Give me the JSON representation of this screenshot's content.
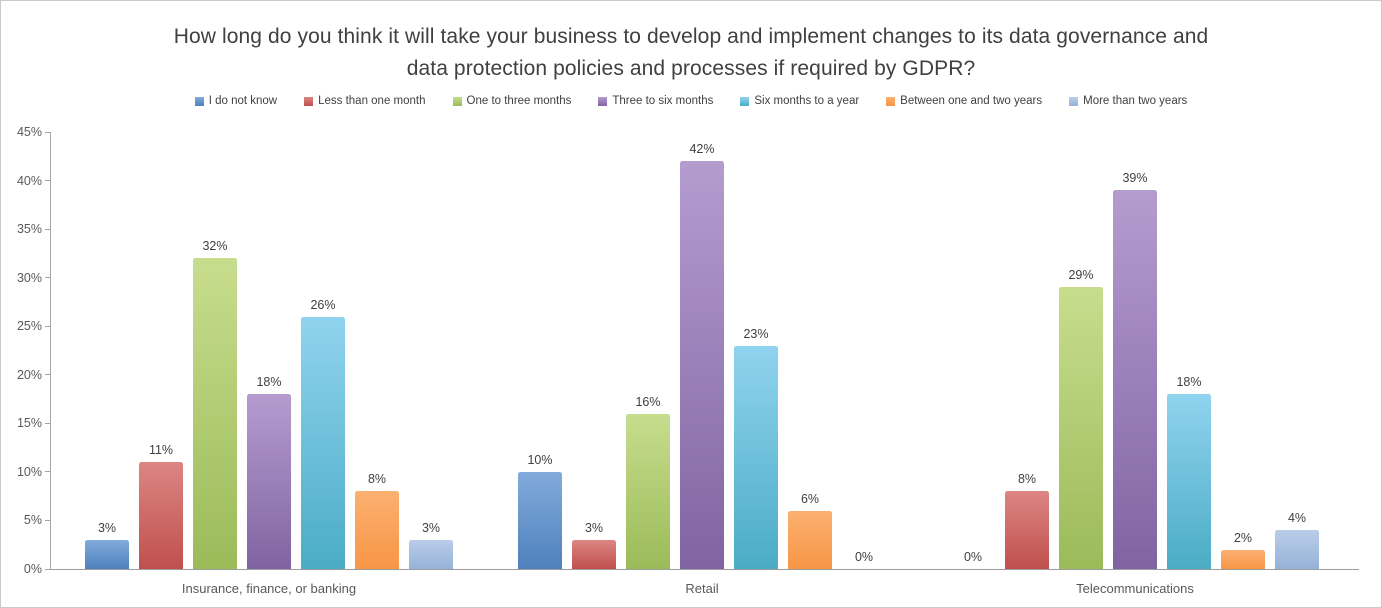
{
  "title": {
    "lines": [
      "How long do you think it will take your business to develop and implement changes to its data governance and",
      "data protection policies and processes if required by GDPR?"
    ]
  },
  "chart_data": {
    "type": "bar",
    "title": "How long do you think it will take your business to develop and implement changes to its data governance and data protection policies and processes if required by GDPR?",
    "categories": [
      "Insurance, finance, or banking",
      "Retail",
      "Telecommunications"
    ],
    "series": [
      {
        "name": "I do not know",
        "color": "#4F81BD",
        "color_light": "#82ABDB",
        "values": [
          3,
          10,
          0
        ],
        "labels": [
          "3%",
          "10%",
          "0%"
        ]
      },
      {
        "name": "Less than one month",
        "color": "#C0504D",
        "color_light": "#DC8683",
        "values": [
          11,
          3,
          8
        ],
        "labels": [
          "11%",
          "3%",
          "8%"
        ]
      },
      {
        "name": "One to three months",
        "color": "#9BBB59",
        "color_light": "#C7DD8E",
        "values": [
          32,
          16,
          29
        ],
        "labels": [
          "32%",
          "16%",
          "29%"
        ]
      },
      {
        "name": "Three to six months",
        "color": "#8064A2",
        "color_light": "#B59CCF",
        "values": [
          18,
          42,
          39
        ],
        "labels": [
          "18%",
          "42%",
          "39%"
        ]
      },
      {
        "name": "Six months to a year",
        "color": "#4BACC6",
        "color_light": "#90D3EE",
        "values": [
          26,
          23,
          18
        ],
        "labels": [
          "26%",
          "23%",
          "18%"
        ]
      },
      {
        "name": "Between one and two years",
        "color": "#F79646",
        "color_light": "#FBB071",
        "values": [
          8,
          6,
          2
        ],
        "labels": [
          "8%",
          "6%",
          "2%"
        ]
      },
      {
        "name": "More than two years",
        "color": "#95B3D7",
        "color_light": "#BACDE9",
        "values": [
          3,
          0,
          4
        ],
        "labels": [
          "3%",
          "0%",
          "4%"
        ]
      }
    ],
    "ylim": [
      0,
      45
    ],
    "ytick_step": 5,
    "yticks": [
      "0%",
      "5%",
      "10%",
      "15%",
      "20%",
      "25%",
      "30%",
      "35%",
      "40%",
      "45%"
    ],
    "grid": false,
    "legend_position": "top",
    "axis_color": "#A6A6A6",
    "label_color": "#404040",
    "tick_label_color": "#595959"
  }
}
